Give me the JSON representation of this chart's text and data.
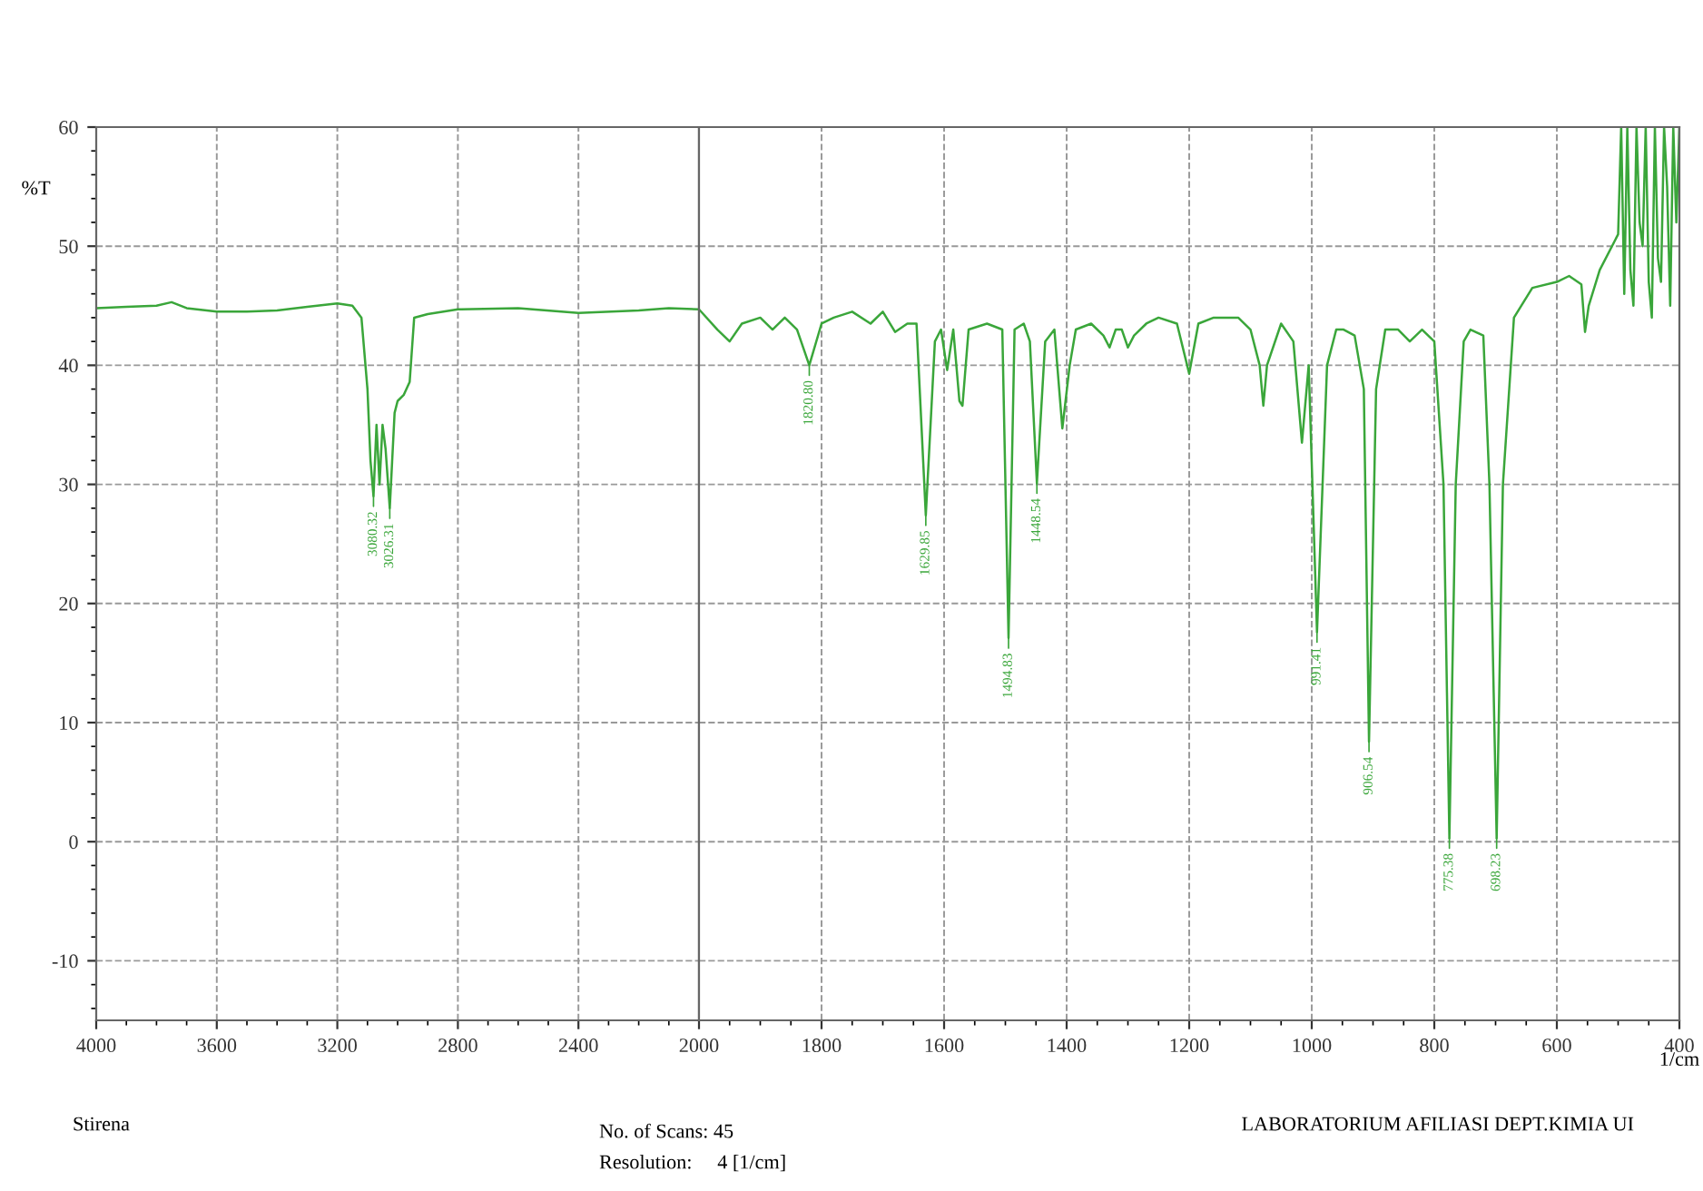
{
  "chart_data": [
    {
      "type": "line",
      "ylabel": "%T",
      "x": [
        4000,
        3900,
        3800,
        3750,
        3700,
        3600,
        3500,
        3400,
        3300,
        3200,
        3150,
        3120,
        3100,
        3090,
        3080,
        3070,
        3060,
        3050,
        3040,
        3026,
        3010,
        3000,
        2980,
        2960,
        2945,
        2900,
        2800,
        2600,
        2400,
        2200,
        2100,
        2000
      ],
      "series": [
        {
          "color": "#3aa63a",
          "values": [
            44.8,
            44.9,
            45.0,
            45.3,
            44.8,
            44.5,
            44.5,
            44.6,
            44.9,
            45.2,
            45.0,
            44.0,
            38.0,
            32.0,
            29.0,
            35.0,
            30.0,
            35.0,
            33.0,
            28.0,
            36.0,
            37.0,
            37.5,
            38.6,
            44.0,
            44.3,
            44.7,
            44.8,
            44.4,
            44.6,
            44.8,
            44.7
          ]
        }
      ],
      "xlim": [
        4000,
        2000
      ],
      "xticks": [
        4000,
        3600,
        3200,
        2800,
        2400
      ],
      "ylim": [
        -15,
        60
      ],
      "yticks": [
        -10,
        0,
        10,
        20,
        30,
        40,
        50,
        60
      ],
      "grid": true,
      "annotations": [
        {
          "text": "3080.32",
          "x": 3080,
          "y": 29.0
        },
        {
          "text": "3026.31",
          "x": 3026,
          "y": 28.0
        },
        "Stirena",
        "No. of Scans: 45",
        "Resolution:     4 [1/cm]",
        "LABORATORIUM AFILIASI DEPT.KIMIA UI"
      ]
    },
    {
      "type": "line",
      "xlabel": "1/cm",
      "x": [
        2000,
        1970,
        1950,
        1930,
        1900,
        1880,
        1860,
        1840,
        1820,
        1800,
        1780,
        1750,
        1720,
        1700,
        1680,
        1660,
        1645,
        1629.85,
        1615,
        1605,
        1595,
        1585,
        1575,
        1570,
        1560,
        1530,
        1505,
        1494.83,
        1485,
        1470,
        1460,
        1448.54,
        1435,
        1420,
        1407,
        1395,
        1385,
        1360,
        1340,
        1330,
        1320,
        1310,
        1300,
        1290,
        1270,
        1250,
        1220,
        1200,
        1185,
        1160,
        1120,
        1100,
        1085,
        1079,
        1073,
        1050,
        1030,
        1016,
        1005,
        991.41,
        975,
        960,
        948,
        930,
        915,
        906.54,
        895,
        880,
        859,
        840,
        820,
        800,
        785,
        775.38,
        765,
        752,
        741,
        720,
        710,
        698.23,
        688,
        670,
        640,
        600,
        580,
        560,
        554,
        548,
        530,
        510,
        500,
        495,
        490,
        485,
        480,
        475,
        470,
        465,
        460,
        455,
        450,
        445,
        440,
        435,
        430,
        425,
        420,
        415,
        410,
        405,
        400
      ],
      "series": [
        {
          "color": "#3aa63a",
          "values": [
            44.7,
            43.0,
            42.0,
            43.5,
            44.0,
            43.0,
            44.0,
            43.0,
            40.0,
            43.5,
            44.0,
            44.5,
            43.5,
            44.5,
            42.8,
            43.5,
            43.5,
            27.4,
            42.0,
            43.0,
            39.6,
            43.0,
            37.0,
            36.6,
            43.0,
            43.5,
            43.0,
            17.1,
            43.0,
            43.5,
            42.0,
            30.1,
            42.0,
            43.0,
            34.7,
            40.0,
            43.0,
            43.5,
            42.5,
            41.5,
            43.0,
            43.0,
            41.5,
            42.5,
            43.5,
            44.0,
            43.5,
            39.3,
            43.5,
            44.0,
            44.0,
            43.0,
            40.0,
            36.6,
            40.0,
            43.5,
            42.0,
            33.5,
            40.0,
            17.6,
            40.0,
            43.0,
            43.0,
            42.5,
            38.0,
            8.4,
            38.0,
            43.0,
            43.0,
            42.0,
            43.0,
            42.0,
            30.0,
            0.3,
            30.0,
            42.0,
            43.0,
            42.5,
            30.0,
            0.3,
            30.0,
            44.0,
            46.5,
            47.0,
            47.5,
            46.8,
            42.8,
            45.0,
            48.0,
            50.0,
            51.0,
            60.0,
            46.0,
            60.0,
            48.0,
            45.0,
            60.0,
            52.0,
            50.0,
            60.0,
            47.0,
            44.0,
            60.0,
            49.0,
            47.0,
            60.0,
            55.0,
            45.0,
            60.0,
            52.0,
            60.0
          ]
        }
      ],
      "xlim": [
        2000,
        400
      ],
      "xticks": [
        2000,
        1800,
        1600,
        1400,
        1200,
        1000,
        800,
        600,
        400
      ],
      "ylim": [
        -15,
        60
      ],
      "yticks": [
        -10,
        0,
        10,
        20,
        30,
        40,
        50,
        60
      ],
      "tick_labels": "x",
      "grid": true,
      "annotations": [
        {
          "text": "1820.80",
          "x": 1820,
          "y": 40.0
        },
        {
          "text": "1629.85",
          "x": 1629.85,
          "y": 27.4
        },
        {
          "text": "1494.83",
          "x": 1494.83,
          "y": 17.1
        },
        {
          "text": "1448.54",
          "x": 1448.54,
          "y": 30.1
        },
        {
          "text": "991.41",
          "x": 991.41,
          "y": 17.6
        },
        {
          "text": "906.54",
          "x": 906.54,
          "y": 8.4
        },
        {
          "text": "775.38",
          "x": 775.38,
          "y": 0.3
        },
        {
          "text": "698.23",
          "x": 698.23,
          "y": 0.3
        }
      ]
    }
  ]
}
